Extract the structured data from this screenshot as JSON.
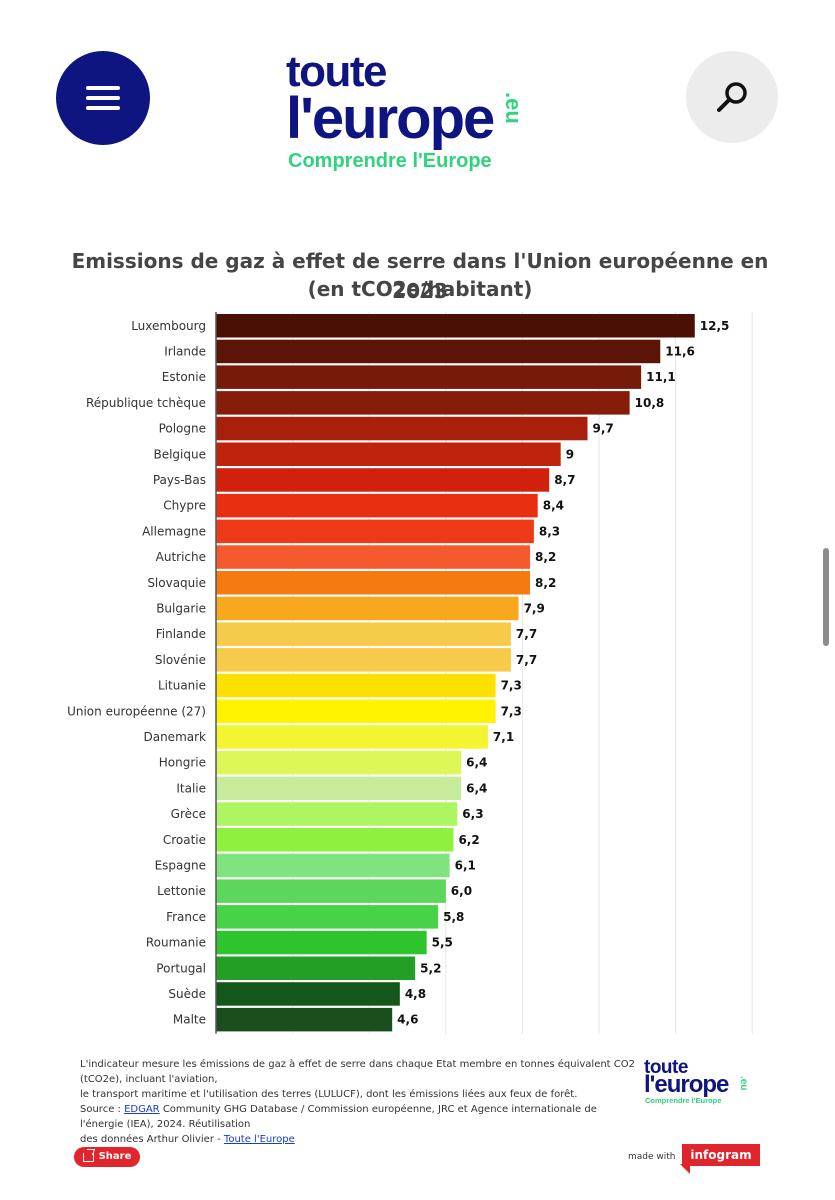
{
  "header": {
    "menu_icon": "hamburger-menu-icon",
    "search_icon": "magnifier-search-icon",
    "logo": {
      "line1": "toute",
      "line2": "l'europe",
      "suffix": ".eu",
      "tagline": "Comprendre l'Europe"
    }
  },
  "colors": {
    "brand_navy": "#0e1480",
    "brand_green": "#2fd37c",
    "share_red": "#e0262c"
  },
  "chart_data": {
    "type": "bar",
    "orientation": "horizontal",
    "title": "Emissions de gaz à effet de serre dans l'Union européenne en 2023",
    "subtitle": "(en tCO2e/habitant)",
    "xlim": [
      0,
      14
    ],
    "grid": true,
    "value_labels": [
      "12,5",
      "11,6",
      "11,1",
      "10,8",
      "9,7",
      "9",
      "8,7",
      "8,4",
      "8,3",
      "8,2",
      "8,2",
      "7,9",
      "7,7",
      "7,7",
      "7,3",
      "7,3",
      "7,1",
      "6,4",
      "6,4",
      "6,3",
      "6,2",
      "6,1",
      "6,0",
      "5,8",
      "5,5",
      "5,2",
      "4,8",
      "4,6"
    ],
    "categories": [
      "Luxembourg",
      "Irlande",
      "Estonie",
      "République tchèque",
      "Pologne",
      "Belgique",
      "Pays-Bas",
      "Chypre",
      "Allemagne",
      "Autriche",
      "Slovaquie",
      "Bulgarie",
      "Finlande",
      "Slovénie",
      "Lituanie",
      "Union européenne (27)",
      "Danemark",
      "Hongrie",
      "Italie",
      "Grèce",
      "Croatie",
      "Espagne",
      "Lettonie",
      "France",
      "Roumanie",
      "Portugal",
      "Suède",
      "Malte"
    ],
    "values": [
      12.5,
      11.6,
      11.1,
      10.8,
      9.7,
      9,
      8.7,
      8.4,
      8.3,
      8.2,
      8.2,
      7.9,
      7.7,
      7.7,
      7.3,
      7.3,
      7.1,
      6.4,
      6.4,
      6.3,
      6.2,
      6.1,
      6.0,
      5.8,
      5.5,
      5.2,
      4.8,
      4.6
    ],
    "colors": [
      "#4a0f05",
      "#5c1407",
      "#761a0a",
      "#861d0b",
      "#a81f0c",
      "#c0230c",
      "#d1200c",
      "#e82f12",
      "#ef3a18",
      "#f55a2e",
      "#f57a10",
      "#f8a81c",
      "#f7cb4a",
      "#f7cb4a",
      "#fbe000",
      "#fff300",
      "#f2f530",
      "#ddf758",
      "#c6eb9a",
      "#adf562",
      "#90f03e",
      "#7fe47e",
      "#5cd75c",
      "#47d248",
      "#2ec42e",
      "#229f24",
      "#13581a",
      "#184f1c"
    ]
  },
  "footer": {
    "note_line1": "L'indicateur mesure les émissions de gaz à effet de serre dans chaque Etat membre en tonnes équivalent CO2 (tCO2e), incluant l'aviation,",
    "note_line2": "le transport maritime et l'utilisation des terres (LULUCF), dont les émissions liées aux feux de forêt.",
    "source_prefix": "Source : ",
    "source_link": "EDGAR",
    "source_rest": " Community GHG Database / Commission européenne, JRC et Agence internationale de l'énergie (IEA), 2024. Réutilisation",
    "reuse_text": "des données Arthur Olivier - ",
    "reuse_link": "Toute l'Europe",
    "mini_logo": {
      "line1": "toute",
      "line2": "l'europe",
      "suffix": ".eu",
      "tagline": "Comprendre l'Europe"
    },
    "share_label": "Share",
    "share_icon": "share-arrow-icon",
    "made_with": "made with",
    "infogram": "infogram"
  }
}
